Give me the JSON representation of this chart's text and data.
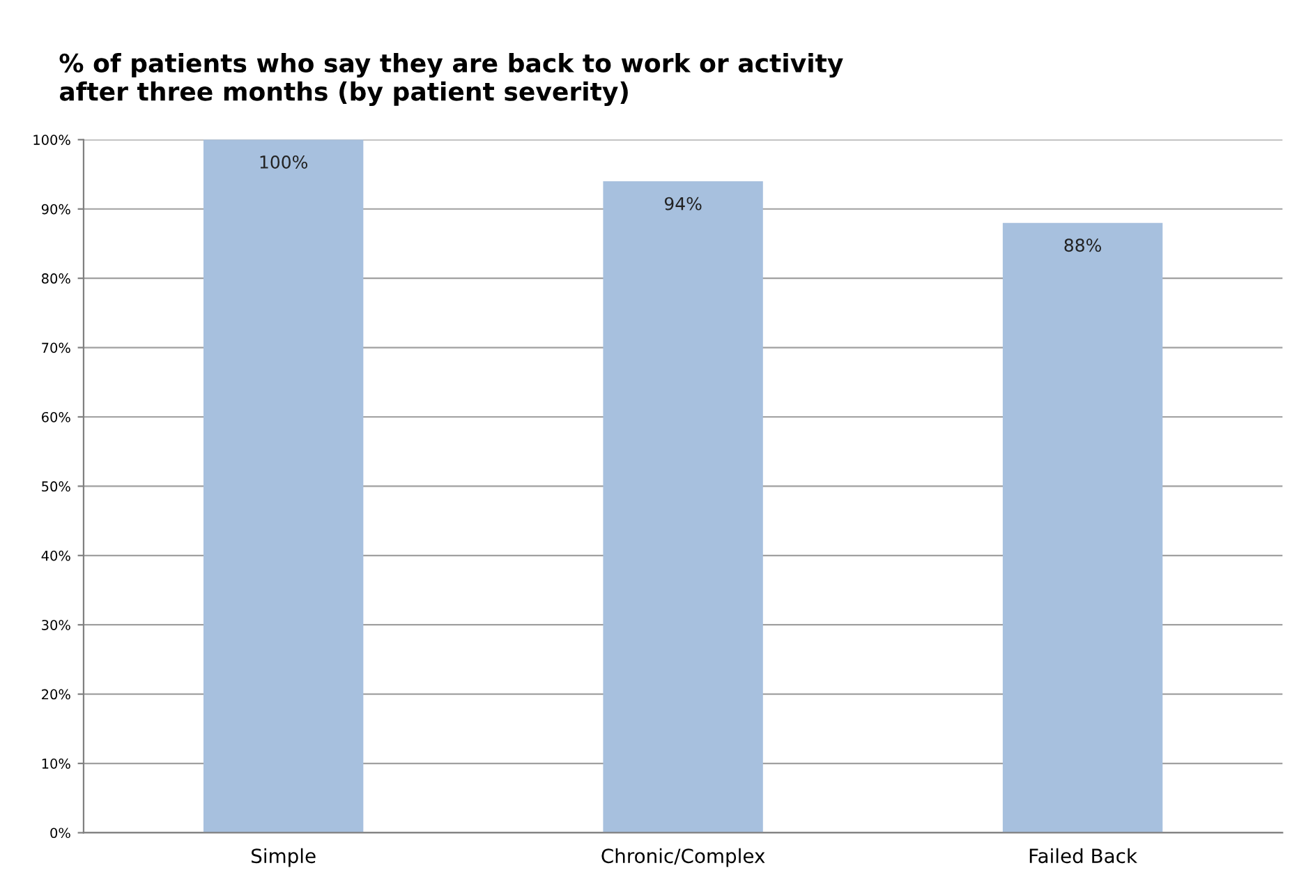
{
  "chart_data": {
    "type": "bar",
    "title": "% of patients who say they are back to work or activity\nafter three months (by patient severity)",
    "categories": [
      "Simple",
      "Chronic/Complex",
      "Failed Back"
    ],
    "values": [
      100,
      94,
      88
    ],
    "color": "#a7c0de",
    "value_labels": [
      "100%",
      "94%",
      "88%"
    ],
    "ylim": [
      0,
      100
    ],
    "yticks": [
      {
        "value": 0,
        "label": "0%"
      },
      {
        "value": 10,
        "label": "10%"
      },
      {
        "value": 20,
        "label": "20%"
      },
      {
        "value": 30,
        "label": "30%"
      },
      {
        "value": 40,
        "label": "40%"
      },
      {
        "value": 50,
        "label": "50%"
      },
      {
        "value": 60,
        "label": "60%"
      },
      {
        "value": 70,
        "label": "70%"
      },
      {
        "value": 80,
        "label": "80%"
      },
      {
        "value": 90,
        "label": "90%"
      },
      {
        "value": 100,
        "label": "100%"
      }
    ],
    "grid": "y",
    "legend": false
  }
}
